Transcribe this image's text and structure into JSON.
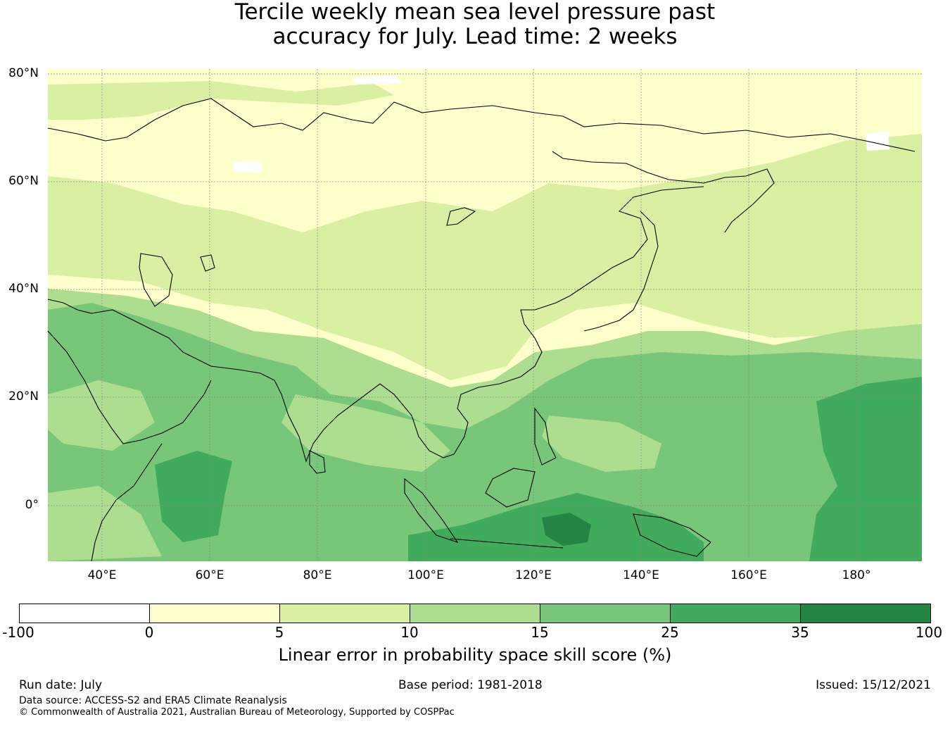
{
  "title": {
    "line1": "Tercile weekly mean sea level pressure past",
    "line2": "accuracy for July. Lead time: 2 weeks"
  },
  "map": {
    "lat_labels": [
      "80°N",
      "60°N",
      "40°N",
      "20°N",
      "0°"
    ],
    "lon_labels": [
      "40°E",
      "60°E",
      "80°E",
      "100°E",
      "120°E",
      "140°E",
      "160°E",
      "180°"
    ],
    "colors": {
      "neg": "#ffffff",
      "b0_5": "#ffffcc",
      "b5_10": "#d9f0a3",
      "b10_15": "#addd8e",
      "b15_25": "#78c679",
      "b25_35": "#41ab5d",
      "b35_100": "#238443",
      "coast": "#000000",
      "grid": "#888888"
    }
  },
  "colorbar": {
    "ticks": [
      "-100",
      "0",
      "5",
      "10",
      "15",
      "25",
      "35",
      "100"
    ],
    "label": "Linear error in probability space skill score (%)"
  },
  "footer": {
    "run_date": "Run date: July",
    "base_period": "Base period: 1981-2018",
    "issued": "Issued: 15/12/2021",
    "data_source": "Data source: ACCESS-S2 and ERA5 Climate Reanalysis",
    "copyright": "© Commonwealth of Australia 2021, Australian Bureau of Meteorology, Supported by COSPPac"
  }
}
